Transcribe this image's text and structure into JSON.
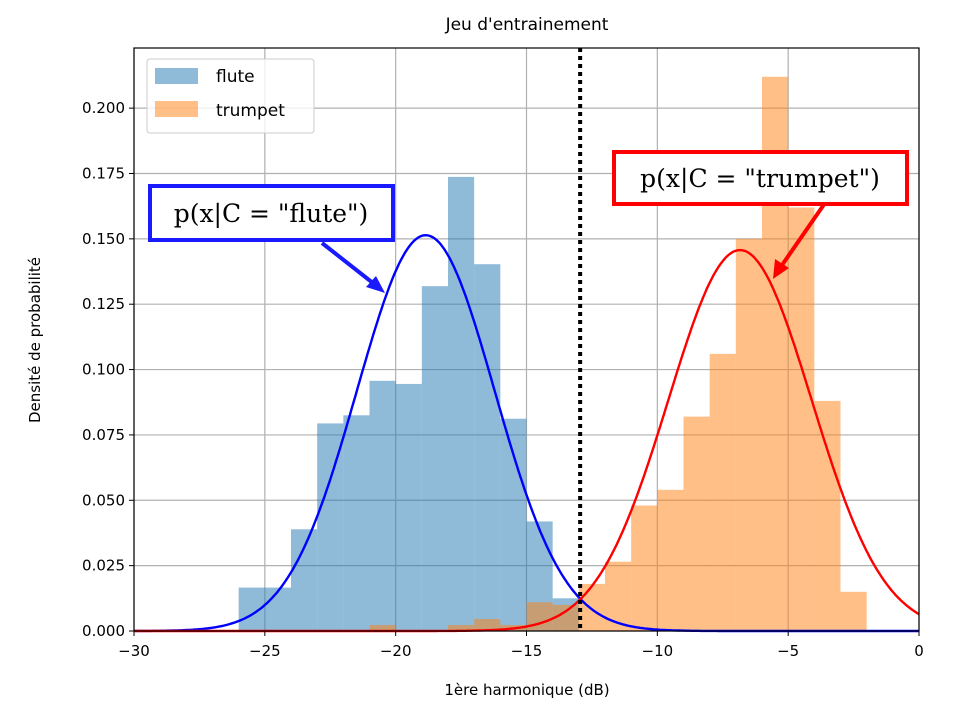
{
  "chart_data": {
    "type": "bar",
    "title": "Jeu d'entrainement",
    "xlabel": "1ère harmonique (dB)",
    "ylabel": "Densité de probabilité",
    "xlim": [
      -30,
      0
    ],
    "ylim": [
      0,
      0.223
    ],
    "xticks": [
      -30,
      -25,
      -20,
      -15,
      -10,
      -5,
      0
    ],
    "xtick_labels": [
      "−30",
      "−25",
      "−20",
      "−15",
      "−10",
      "−5",
      "0"
    ],
    "yticks": [
      0,
      0.025,
      0.05,
      0.075,
      0.1,
      0.125,
      0.15,
      0.175,
      0.2
    ],
    "ytick_labels": [
      "0.000",
      "0.025",
      "0.050",
      "0.075",
      "0.100",
      "0.125",
      "0.150",
      "0.175",
      "0.200"
    ],
    "grid": true,
    "legend_position": "top-left",
    "series": [
      {
        "name": "flute",
        "kind": "histogram",
        "color": "#1f77b4",
        "bin_start": -26,
        "bin_width": 1,
        "values": [
          0.0166,
          0.0166,
          0.0389,
          0.0794,
          0.0825,
          0.0957,
          0.0945,
          0.1319,
          0.1737,
          0.1403,
          0.0812,
          0.0419,
          0.0125
        ]
      },
      {
        "name": "trumpet",
        "kind": "histogram",
        "color": "#ff7f0e",
        "bin_start": -21,
        "bin_width": 1,
        "values": [
          0.0023,
          0,
          0,
          0.0023,
          0.0046,
          0.0023,
          0.011,
          0.01,
          0.018,
          0.0265,
          0.048,
          0.054,
          0.082,
          0.106,
          0.15,
          0.212,
          0.162,
          0.088,
          0.015
        ]
      }
    ],
    "curves": [
      {
        "kind": "gaussian",
        "mean": -18.85,
        "std": 2.635,
        "color": "#0000ff"
      },
      {
        "kind": "gaussian",
        "mean": -6.84,
        "std": 2.738,
        "color": "#ff0000"
      }
    ],
    "decision_threshold": {
      "x": -12.95,
      "style": "dotted",
      "color": "#000000"
    },
    "annotations": [
      {
        "text": "p(x|C = \"flute\")",
        "color": "#0000ff"
      },
      {
        "text": "p(x|C = \"trumpet\")",
        "color": "#ff0000"
      }
    ]
  }
}
